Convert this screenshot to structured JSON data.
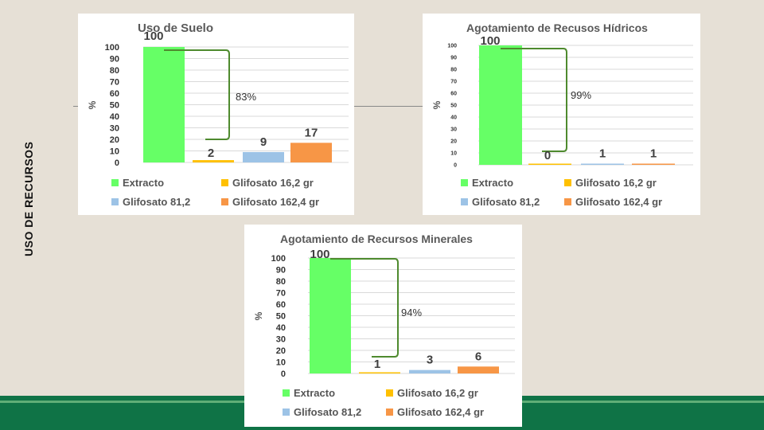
{
  "slide": {
    "side_title": "USO DE RECURSOS",
    "background": "#e6e0d6",
    "band_color": "#0f7346"
  },
  "series_colors": {
    "Extracto": "#66ff66",
    "Glifosato 16,2 gr": "#ffc000",
    "Glifosato 81,2": "#9dc3e6",
    "Glifosato 162,4 gr": "#f79646"
  },
  "chart_data": [
    {
      "type": "bar",
      "title": "Uso de Suelo",
      "ylabel": "%",
      "ylim": [
        0,
        100
      ],
      "yticks": [
        0,
        10,
        20,
        30,
        40,
        50,
        60,
        70,
        80,
        90,
        100
      ],
      "categories": [
        "Extracto",
        "Glifosato 16,2 gr",
        "Glifosato 81,2",
        "Glifosato 162,4 gr"
      ],
      "values": [
        100,
        2,
        9,
        17
      ],
      "data_labels": [
        "100",
        "2",
        "9",
        "17"
      ],
      "annotation": "83%",
      "legend": [
        "Extracto",
        "Glifosato 16,2 gr",
        "Glifosato 81,2",
        "Glifosato 162,4 gr"
      ],
      "grid": true
    },
    {
      "type": "bar",
      "title": "Agotamiento de Recusos Hídricos",
      "ylabel": "%",
      "ylim": [
        0,
        100
      ],
      "yticks": [
        0,
        10,
        20,
        30,
        40,
        50,
        60,
        70,
        80,
        90,
        100
      ],
      "categories": [
        "Extracto",
        "Glifosato 16,2 gr",
        "Glifosato 81,2",
        "Glifosato 162,4 gr"
      ],
      "values": [
        100,
        0,
        1,
        1
      ],
      "data_labels": [
        "100",
        "0",
        "1",
        "1"
      ],
      "annotation": "99%",
      "legend": [
        "Extracto",
        "Glifosato 16,2 gr",
        "Glifosato 81,2",
        "Glifosato 162,4 gr"
      ],
      "grid": true
    },
    {
      "type": "bar",
      "title": "Agotamiento de Recursos Minerales",
      "ylabel": "%",
      "ylim": [
        0,
        100
      ],
      "yticks": [
        0,
        10,
        20,
        30,
        40,
        50,
        60,
        70,
        80,
        90,
        100
      ],
      "categories": [
        "Extracto",
        "Glifosato 16,2 gr",
        "Glifosato 81,2",
        "Glifosato 162,4 gr"
      ],
      "values": [
        100,
        1,
        3,
        6
      ],
      "data_labels": [
        "100",
        "1",
        "3",
        "6"
      ],
      "annotation": "94%",
      "legend": [
        "Extracto",
        "Glifosato 16,2 gr",
        "Glifosato 81,2",
        "Glifosato 162,4 gr"
      ],
      "grid": true
    }
  ]
}
